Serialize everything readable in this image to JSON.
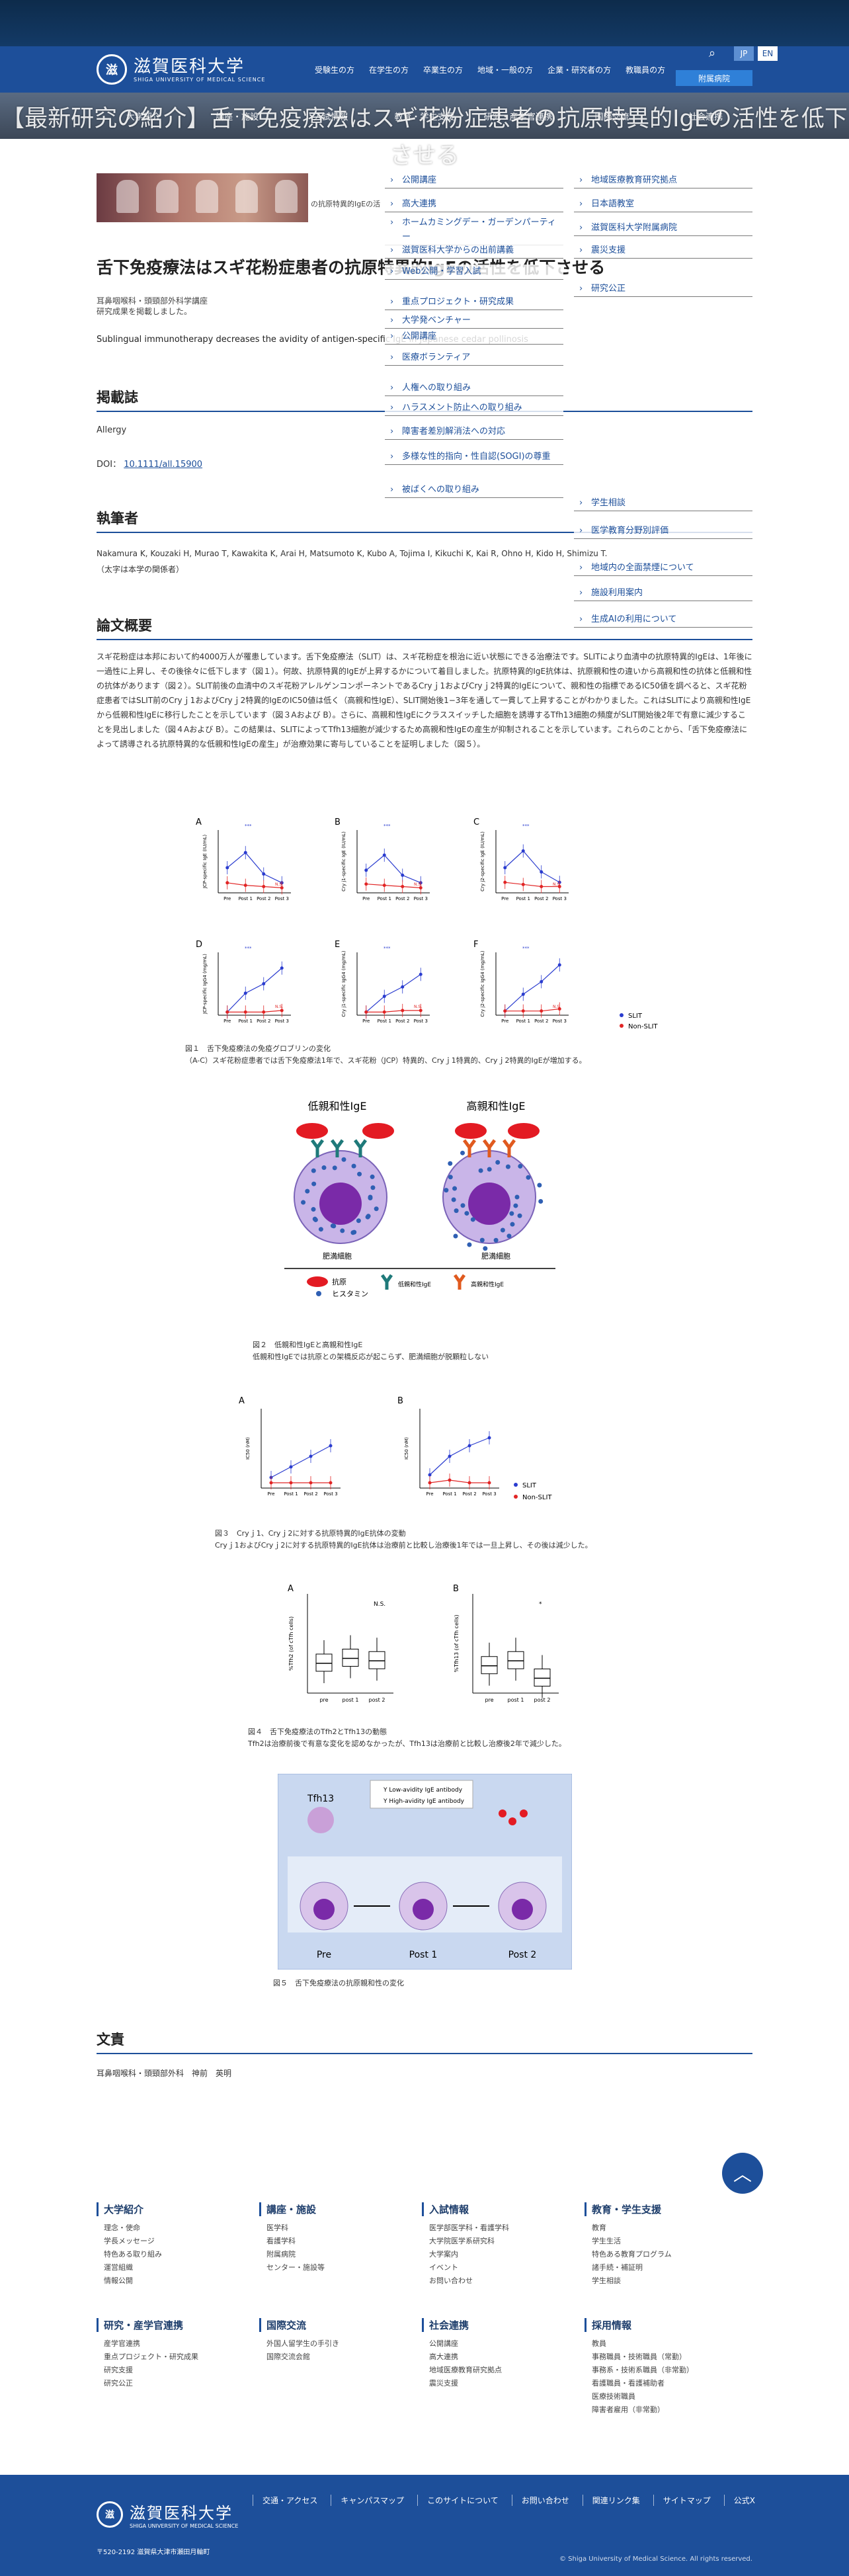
{
  "header": {
    "logo_jp": "滋賀医科大学",
    "logo_en": "SHIGA UNIVERSITY OF MEDICAL SCIENCE",
    "audience": [
      "受験生の方",
      "在学生の方",
      "卒業生の方",
      "地域・一般の方",
      "企業・研究者の方",
      "教職員の方"
    ],
    "lang_jp": "JP",
    "lang_en": "EN",
    "hospital": "附属病院"
  },
  "gnav": [
    "大学紹介",
    "講座・施設",
    "入試情報",
    "教育・学生支援",
    "研究・産学官連携",
    "国際交流",
    "社会連携"
  ],
  "overlay_title": "【最新研究の紹介】舌下免疫療法はスギ花粉症患者の抗原特異的IgEの活性を低下させる",
  "crumb_text": "の抗原特異的IgEの活",
  "article_title": "舌下免疫療法はスギ花粉症患者の抗原特異的IgEの活性を低下させる",
  "sub_meta": [
    "耳鼻咽喉科・頭頸部外科学講座",
    "研究成果を掲載しました。"
  ],
  "en_title": "Sublingual immunotherapy decreases the avidity of antigen-specific IgE in Japanese cedar pollinosis",
  "journal": {
    "heading": "掲載誌",
    "name": "Allergy",
    "doi_label": "DOI：",
    "doi": "10.1111/all.15900"
  },
  "authors": {
    "heading": "執筆者",
    "list": "Nakamura K, Kouzaki H, Murao T, Kawakita K, Arai H, Matsumoto K, Kubo A, Tojima I, Kikuchi K, Kai R, Ohno H, Kido H, Shimizu T.",
    "note": "（太字は本学の関係者）"
  },
  "abstract": {
    "heading": "論文概要",
    "text": "スギ花粉症は本邦において約4000万人が罹患しています。舌下免疫療法（SLIT）は、スギ花粉症を根治に近い状態にできる治療法です。SLITにより血清中の抗原特異的IgEは、1年後に一過性に上昇し、その後徐々に低下します（図１）。何故、抗原特異的IgEが上昇するかについて着目しました。抗原特異的IgE抗体は、抗原親和性の違いから高親和性の抗体と低親和性の抗体があります（図２）。SLIT前後の血清中のスギ花粉アレルゲンコンポーネントであるCryｊ1およびCryｊ2特異的IgEについて、親和性の指標であるIC50値を調べると、スギ花粉症患者ではSLIT前のCryｊ1およびCryｊ2特異的IgEのIC50値は低く（高親和性IgE）、SLIT開始後1−3年を通して一貫して上昇することがわかりました。これはSLITにより高親和性IgEから低親和性IgEに移行したことを示しています（図３Aおよび B）。さらに、高親和性IgEにクラススイッチした細胞を誘導するTfh13細胞の頻度がSLIT開始後2年で有意に減少することを見出しました（図４Aおよび B）。この結果は、SLITによってTfh13細胞が減少するため高親和性IgEの産生が抑制されることを示しています。これらのことから、「舌下免疫療法によって誘導される抗原特異的な低親和性IgEの産生」が治療効果に寄与していることを証明しました（図５）。"
  },
  "mega_menu": {
    "col1": [
      "公開講座",
      "高大連携",
      "ホームカミングデー・ガーデンパーティー",
      "滋賀医科大学からの出前講義",
      "Web公開・学習入試",
      "重点プロジェクト・研究成果",
      "大学発ベンチャー",
      "公開講座",
      "医療ボランティア",
      "人権への取り組み",
      "ハラスメント防止への取り組み",
      "障害者差別解消法への対応",
      "多様な性的指向・性自認(SOGI)の尊重",
      "被ばくへの取り組み"
    ],
    "col2": [
      "地域医療教育研究拠点",
      "日本語教室",
      "滋賀医科大学附属病院",
      "震災支援",
      "研究公正",
      "学生相談",
      "医学教育分野別評価",
      "地域内の全面禁煙について",
      "施設利用案内",
      "生成AIの利用について"
    ]
  },
  "fig1": {
    "caption1": "図１　舌下免疫療法の免疫グロブリンの変化",
    "caption2": "（A-C）スギ花粉症患者では舌下免疫療法1年で、スギ花粉（JCP）特異的、Cryｊ1特異的、Cryｊ2特異的IgEが増加する。",
    "x_ticks": [
      "Pre",
      "Post 1",
      "Post 2",
      "Post 3"
    ],
    "legend": [
      "SLIT",
      "Non-SLIT"
    ],
    "ylabels": [
      "JCP-specific IgE (IU/mL)",
      "Cry j1-specific IgE (IU/mL)",
      "Cry j2-specific IgE (IU/mL)",
      "JCP-specific IgG4 (mg/mL)",
      "Cry j1-specific IgG4 (mg/mL)",
      "Cry j2-specific IgG4 (mg/mL)"
    ],
    "panels": [
      "A",
      "B",
      "C",
      "D",
      "E",
      "F"
    ],
    "ns": "N.S.",
    "stars": "***"
  },
  "fig2": {
    "low_title": "低親和性IgE",
    "high_title": "高親和性IgE",
    "cell": "肥満細胞",
    "legend": [
      "抗原",
      "ヒスタミン",
      "低親和性IgE",
      "高親和性IgE"
    ],
    "caption1": "図２　低親和性IgEと高親和性IgE",
    "caption2": "低親和性IgEでは抗原との架橋反応が起こらず、肥満細胞が脱顆粒しない"
  },
  "fig3": {
    "panels": [
      "A",
      "B"
    ],
    "ylabel": "IC50 (nM)",
    "legend": [
      "SLIT",
      "Non-SLIT"
    ],
    "caption1": "図３　Cryｊ1、Cryｊ2に対する抗原特異的IgE抗体の変動",
    "caption2": "Cryｊ1およびCryｊ2に対する抗原特異的IgE抗体は治療前と比較し治療後1年では一旦上昇し、その後は減少した。"
  },
  "fig4": {
    "panels": [
      "A",
      "B"
    ],
    "ylabelA": "%Tfh2 (of cTfh cells)",
    "ylabelB": "%Tfh13 (of cTfh cells)",
    "x_ticks": [
      "pre",
      "post 1",
      "post 2"
    ],
    "ns": "N.S.",
    "star": "*",
    "caption1": "図４　舌下免疫療法のTfh2とTfh13の動態",
    "caption2": "Tfh2は治療前後で有意な変化を認めなかったが、Tfh13は治療前と比較し治療後2年で減少した。"
  },
  "fig5": {
    "tfh13": "Tfh13",
    "legend": [
      "Low-avidity IgE antibody",
      "High-avidity IgE antibody"
    ],
    "stages": [
      "Pre",
      "Post 1",
      "Post 2"
    ],
    "caption": "図５　舌下免疫療法の抗原親和性の変化"
  },
  "contact": {
    "heading": "文責",
    "text": "耳鼻咽喉科・頭頸部外科　神前　英明"
  },
  "footer": {
    "cols": [
      {
        "title": "大学紹介",
        "items": [
          "理念・使命",
          "学長メッセージ",
          "特色ある取り組み",
          "運営組織",
          "情報公開"
        ]
      },
      {
        "title": "講座・施設",
        "items": [
          "医学科",
          "看護学科",
          "附属病院",
          "センター・施設等"
        ]
      },
      {
        "title": "入試情報",
        "items": [
          "医学部医学科・看護学科",
          "大学院医学系研究科",
          "大学案内",
          "イベント",
          "お問い合わせ"
        ]
      },
      {
        "title": "教育・学生支援",
        "items": [
          "教育",
          "学生生活",
          "特色ある教育プログラム",
          "諸手続・補証明",
          "学生相談"
        ]
      },
      {
        "title": "研究・産学官連携",
        "items": [
          "産学官連携",
          "重点プロジェクト・研究成果",
          "研究支援",
          "研究公正"
        ]
      },
      {
        "title": "国際交流",
        "items": [
          "外国人留学生の手引き",
          "国際交流会館"
        ]
      },
      {
        "title": "社会連携",
        "items": [
          "公開講座",
          "高大連携",
          "地域医療教育研究拠点",
          "震災支援"
        ]
      },
      {
        "title": "採用情報",
        "items": [
          "教員",
          "事務職員・技術職員（常勤）",
          "事務系・技術系職員（非常勤）",
          "看護職員・看護補助者",
          "医療技術職員",
          "障害者雇用（非常勤）"
        ]
      }
    ],
    "links": [
      "交通・アクセス",
      "キャンパスマップ",
      "このサイトについて",
      "お問い合わせ",
      "関連リンク集",
      "サイトマップ",
      "公式X"
    ],
    "address": "〒520-2192 滋賀県大津市瀬田月輪町",
    "copyright": "© Shiga University of Medical Science. All rights reserved."
  },
  "colors": {
    "brand": "#1d4f9a",
    "slit": "#2a3ccf",
    "nonslit": "#e12525"
  },
  "chart_data": [
    {
      "type": "line",
      "panel": "A",
      "categories": [
        "Pre",
        "Post 1",
        "Post 2",
        "Post 3"
      ],
      "series": [
        {
          "name": "SLIT",
          "values": [
            20,
            32,
            15,
            8
          ]
        },
        {
          "name": "Non-SLIT",
          "values": [
            8,
            6,
            5,
            4
          ]
        }
      ],
      "ylim": [
        0,
        50
      ]
    },
    {
      "type": "line",
      "panel": "B",
      "categories": [
        "Pre",
        "Post 1",
        "Post 2",
        "Post 3"
      ],
      "series": [
        {
          "name": "SLIT",
          "values": [
            18,
            30,
            14,
            8
          ]
        },
        {
          "name": "Non-SLIT",
          "values": [
            7,
            6,
            5,
            4
          ]
        }
      ],
      "ylim": [
        0,
        50
      ]
    },
    {
      "type": "line",
      "panel": "C",
      "categories": [
        "Pre",
        "Post 1",
        "Post 2",
        "Post 3"
      ],
      "series": [
        {
          "name": "SLIT",
          "values": [
            12,
            20,
            10,
            5
          ]
        },
        {
          "name": "Non-SLIT",
          "values": [
            5,
            4,
            3,
            3
          ]
        }
      ],
      "ylim": [
        0,
        30
      ]
    },
    {
      "type": "line",
      "panel": "D",
      "categories": [
        "Pre",
        "Post 1",
        "Post 2",
        "Post 3"
      ],
      "series": [
        {
          "name": "SLIT",
          "values": [
            2,
            14,
            20,
            30
          ]
        },
        {
          "name": "Non-SLIT",
          "values": [
            2,
            2,
            2,
            3
          ]
        }
      ],
      "ylim": [
        0,
        40
      ]
    },
    {
      "type": "line",
      "panel": "E",
      "categories": [
        "Pre",
        "Post 1",
        "Post 2",
        "Post 3"
      ],
      "series": [
        {
          "name": "SLIT",
          "values": [
            2,
            12,
            18,
            26
          ]
        },
        {
          "name": "Non-SLIT",
          "values": [
            2,
            2,
            3,
            3
          ]
        }
      ],
      "ylim": [
        0,
        40
      ]
    },
    {
      "type": "line",
      "panel": "F",
      "categories": [
        "Pre",
        "Post 1",
        "Post 2",
        "Post 3"
      ],
      "series": [
        {
          "name": "SLIT",
          "values": [
            2,
            10,
            16,
            24
          ]
        },
        {
          "name": "Non-SLIT",
          "values": [
            2,
            2,
            2,
            3
          ]
        }
      ],
      "ylim": [
        0,
        30
      ]
    },
    {
      "type": "line",
      "panel": "3A",
      "categories": [
        "Pre",
        "Post 1",
        "Post 2",
        "Post 3"
      ],
      "series": [
        {
          "name": "SLIT",
          "values": [
            0.2,
            0.4,
            0.6,
            0.8
          ]
        },
        {
          "name": "Non-SLIT",
          "values": [
            0.1,
            0.1,
            0.1,
            0.1
          ]
        }
      ],
      "ylim": [
        0,
        1.5
      ]
    },
    {
      "type": "line",
      "panel": "3B",
      "categories": [
        "Pre",
        "Post 1",
        "Post 2",
        "Post 3"
      ],
      "series": [
        {
          "name": "SLIT",
          "values": [
            0.5,
            1.2,
            1.6,
            1.9
          ]
        },
        {
          "name": "Non-SLIT",
          "values": [
            0.2,
            0.3,
            0.2,
            0.2
          ]
        }
      ],
      "ylim": [
        0,
        3
      ]
    },
    {
      "type": "box",
      "panel": "4A",
      "categories": [
        "pre",
        "post 1",
        "post 2"
      ],
      "values": [
        1.2,
        1.4,
        1.3
      ],
      "ylim": [
        0,
        4
      ]
    },
    {
      "type": "box",
      "panel": "4B",
      "categories": [
        "pre",
        "post 1",
        "post 2"
      ],
      "values": [
        1.1,
        1.3,
        0.6
      ],
      "ylim": [
        0,
        4
      ]
    }
  ]
}
